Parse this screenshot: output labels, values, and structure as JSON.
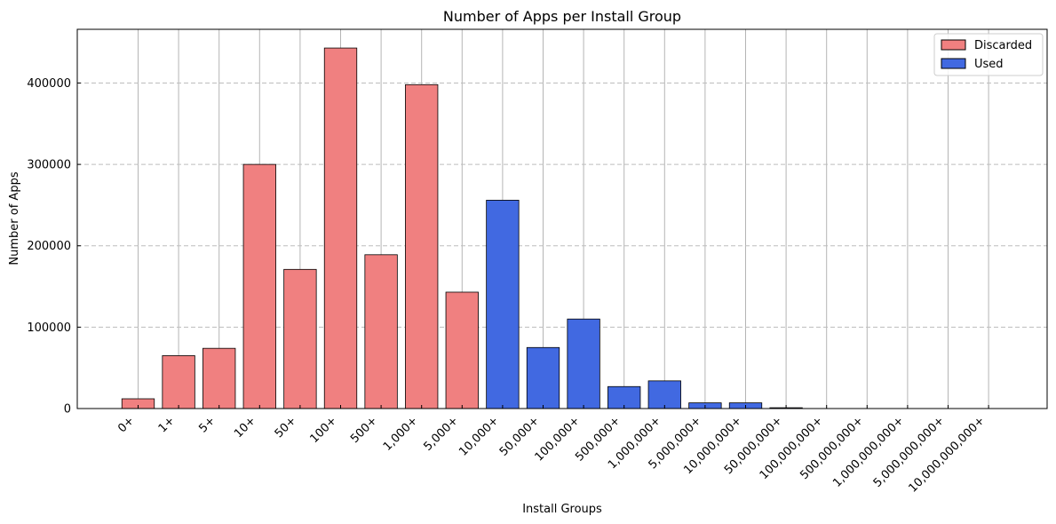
{
  "chart_data": {
    "type": "bar",
    "title": "Number of Apps per Install Group",
    "xlabel": "Install Groups",
    "ylabel": "Number of Apps",
    "ylim": [
      0,
      466000
    ],
    "yticks": [
      0,
      100000,
      200000,
      300000,
      400000
    ],
    "ytick_labels": [
      "0",
      "100000",
      "200000",
      "300000",
      "400000"
    ],
    "categories": [
      "0+",
      "1+",
      "5+",
      "10+",
      "50+",
      "100+",
      "500+",
      "1,000+",
      "5,000+",
      "10,000+",
      "50,000+",
      "100,000+",
      "500,000+",
      "1,000,000+",
      "5,000,000+",
      "10,000,000+",
      "50,000,000+",
      "100,000,000+",
      "500,000,000+",
      "1,000,000,000+",
      "5,000,000,000+",
      "10,000,000,000+"
    ],
    "values": [
      12000,
      65000,
      74000,
      300000,
      171000,
      443000,
      189000,
      398000,
      143000,
      256000,
      75000,
      110000,
      27000,
      34000,
      7000,
      7000,
      1000,
      0,
      0,
      0,
      0,
      0
    ],
    "groups": [
      "Discarded",
      "Discarded",
      "Discarded",
      "Discarded",
      "Discarded",
      "Discarded",
      "Discarded",
      "Discarded",
      "Discarded",
      "Used",
      "Used",
      "Used",
      "Used",
      "Used",
      "Used",
      "Used",
      "Used",
      "Used",
      "Used",
      "Used",
      "Used",
      "Used"
    ],
    "legend": [
      {
        "name": "Discarded",
        "color": "#f08080"
      },
      {
        "name": "Used",
        "color": "#4169e1"
      }
    ],
    "legend_position": "top-right",
    "grid": {
      "x": true,
      "y": true
    }
  }
}
